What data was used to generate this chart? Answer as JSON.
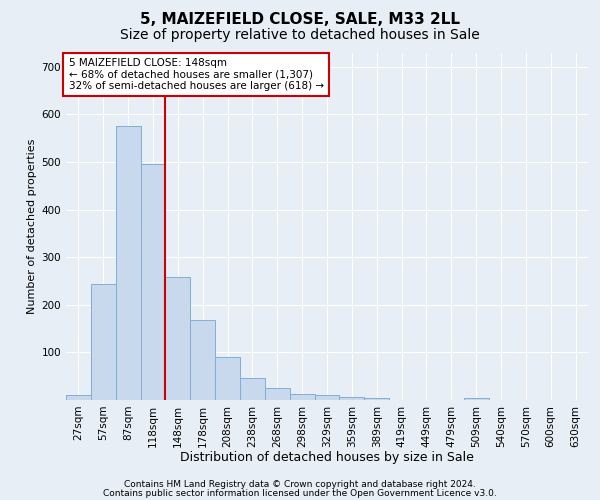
{
  "title1": "5, MAIZEFIELD CLOSE, SALE, M33 2LL",
  "title2": "Size of property relative to detached houses in Sale",
  "xlabel": "Distribution of detached houses by size in Sale",
  "ylabel": "Number of detached properties",
  "categories": [
    "27sqm",
    "57sqm",
    "87sqm",
    "118sqm",
    "148sqm",
    "178sqm",
    "208sqm",
    "238sqm",
    "268sqm",
    "298sqm",
    "329sqm",
    "359sqm",
    "389sqm",
    "419sqm",
    "449sqm",
    "479sqm",
    "509sqm",
    "540sqm",
    "570sqm",
    "600sqm",
    "630sqm"
  ],
  "values": [
    10,
    243,
    575,
    495,
    258,
    168,
    91,
    47,
    25,
    13,
    10,
    6,
    4,
    1,
    0,
    0,
    5,
    0,
    0,
    0,
    0
  ],
  "bar_color": "#c9d9ed",
  "bar_edge_color": "#7fafd4",
  "highlight_line_color": "#cc0000",
  "annotation_text": "5 MAIZEFIELD CLOSE: 148sqm\n← 68% of detached houses are smaller (1,307)\n32% of semi-detached houses are larger (618) →",
  "annotation_box_color": "#ffffff",
  "annotation_box_edge": "#cc0000",
  "ylim": [
    0,
    730
  ],
  "yticks": [
    0,
    100,
    200,
    300,
    400,
    500,
    600,
    700
  ],
  "footer1": "Contains HM Land Registry data © Crown copyright and database right 2024.",
  "footer2": "Contains public sector information licensed under the Open Government Licence v3.0.",
  "background_color": "#e8eef5",
  "plot_bg_color": "#e8eef5",
  "grid_color": "#ffffff",
  "title1_fontsize": 11,
  "title2_fontsize": 10,
  "xlabel_fontsize": 9,
  "ylabel_fontsize": 8,
  "tick_fontsize": 7.5,
  "footer_fontsize": 6.5,
  "ann_fontsize": 7.5
}
